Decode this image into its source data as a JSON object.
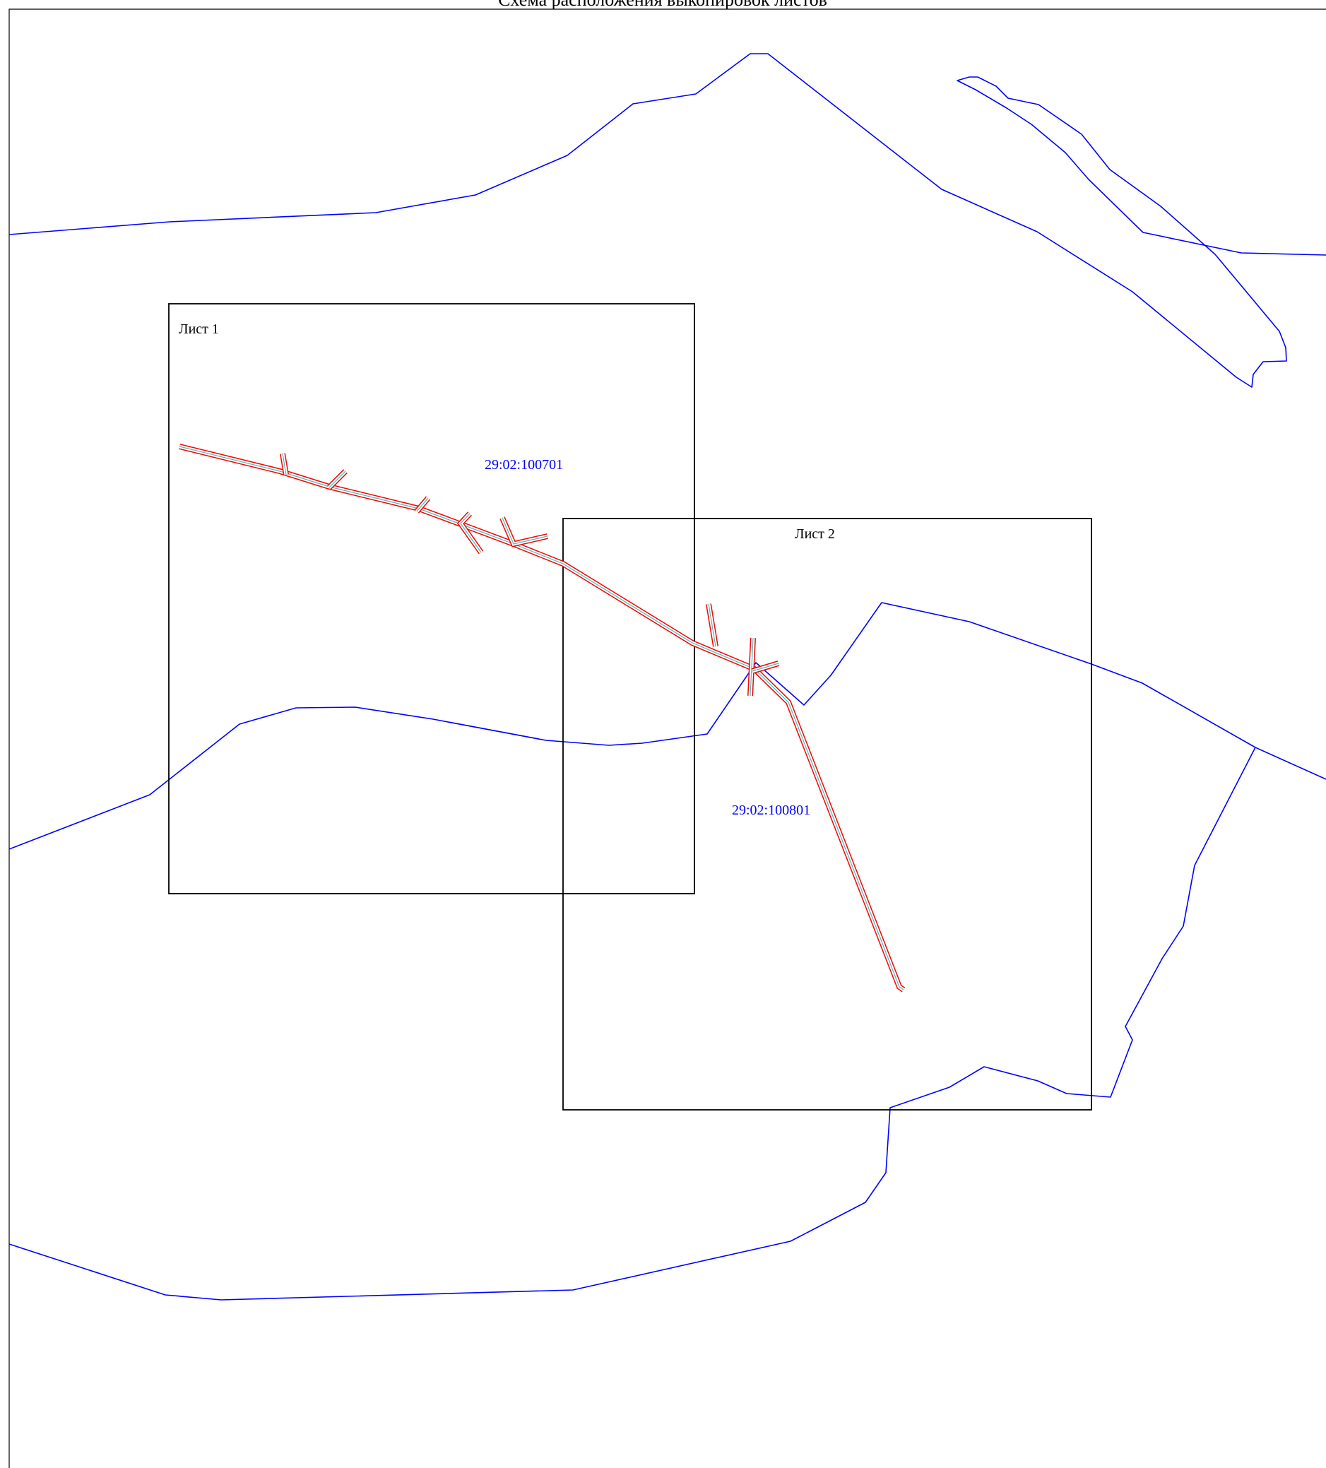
{
  "map": {
    "title": "Схема расположения выкопировок листов",
    "sheets": [
      {
        "label": "Лист 1"
      },
      {
        "label": "Лист 2"
      }
    ],
    "cadastral_quarters": [
      {
        "label": "29:02:100701"
      },
      {
        "label": "29:02:100801"
      }
    ],
    "colors": {
      "boundary": "#0000ff",
      "pipe_outline": "#ff0000",
      "pipe_center": "#40c0c0",
      "sheet_frame": "#000000"
    }
  }
}
